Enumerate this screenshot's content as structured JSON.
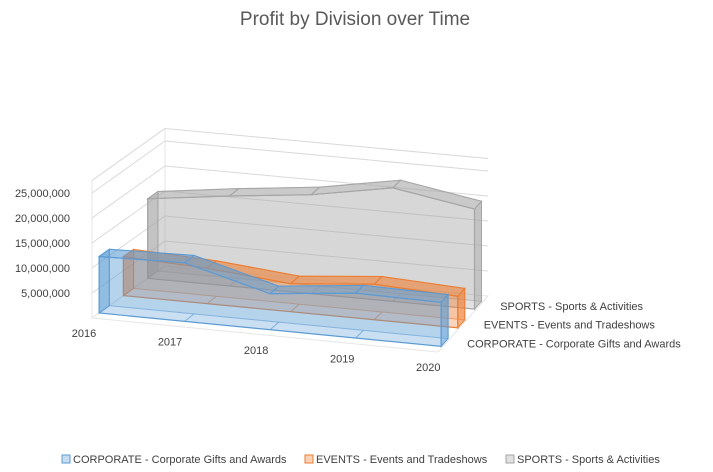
{
  "chart_data": {
    "type": "area",
    "title": "Profit by Division over Time",
    "categories": [
      "2016",
      "2017",
      "2018",
      "2019",
      "2020"
    ],
    "y_ticks": [
      "5,000,000",
      "10,000,000",
      "15,000,000",
      "20,000,000",
      "25,000,000"
    ],
    "ylim": [
      0,
      25000000
    ],
    "series": [
      {
        "name": "CORPORATE - Corporate Gifts and Awards",
        "values": [
          11300000,
          11700000,
          7200000,
          9000000,
          8800000
        ],
        "color": "#5B9BD5"
      },
      {
        "name": "EVENTS - Events and Tradeshows",
        "values": [
          7800000,
          7100000,
          5600000,
          7100000,
          6300000
        ],
        "color": "#ED7D31"
      },
      {
        "name": "SPORTS - Sports & Activities",
        "values": [
          15900000,
          18000000,
          19800000,
          22700000,
          20000000
        ],
        "color": "#A5A5A5"
      }
    ],
    "legend_position": "bottom",
    "chart_style": "3d-area",
    "gridlines": true
  }
}
